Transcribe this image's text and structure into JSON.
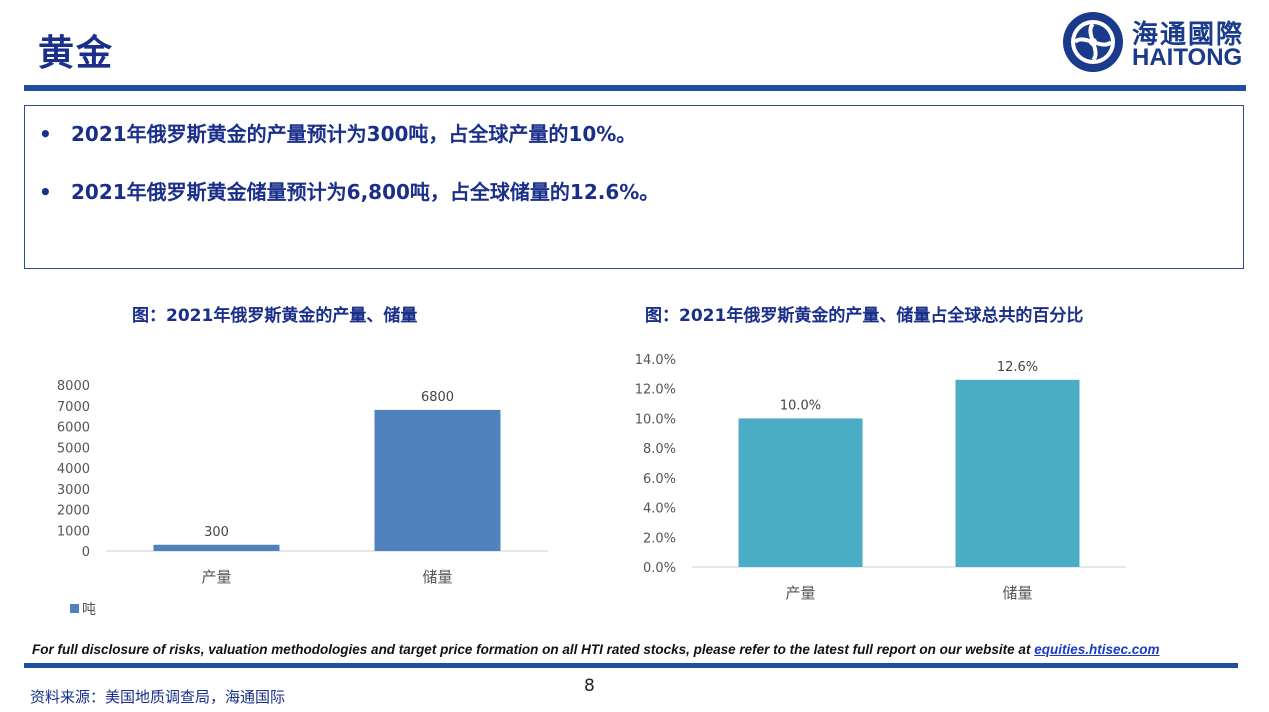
{
  "header": {
    "title": "黄金",
    "logo_cn": "海通國際",
    "logo_en": "HAITONG"
  },
  "bullets": [
    "2021年俄罗斯黄金的产量预计为300吨，占全球产量的10%。",
    "2021年俄罗斯黄金储量预计为6,800吨，占全球储量的12.6%。"
  ],
  "bullet_marker": "•",
  "colors": {
    "primary": "#1a2f8a",
    "rule": "#1e4fa0",
    "bar_left": "#4f81bd",
    "bar_right": "#4bacc6"
  },
  "chart_data": [
    {
      "type": "bar",
      "title": "图：2021年俄罗斯黄金的产量、储量",
      "categories": [
        "产量",
        "储量"
      ],
      "series": [
        {
          "name": "吨",
          "values": [
            300,
            6800
          ]
        }
      ],
      "data_labels": [
        "300",
        "6800"
      ],
      "ylim": [
        0,
        8000
      ],
      "yticks": [
        "0",
        "1000",
        "2000",
        "3000",
        "4000",
        "5000",
        "6000",
        "7000",
        "8000"
      ],
      "grid": false,
      "legend": "bottom-left"
    },
    {
      "type": "bar",
      "title": "图：2021年俄罗斯黄金的产量、储量占全球总共的百分比",
      "categories": [
        "产量",
        "储量"
      ],
      "series": [
        {
          "values": [
            10.0,
            12.6
          ]
        }
      ],
      "data_labels": [
        "10.0%",
        "12.6%"
      ],
      "ylim": [
        0,
        14
      ],
      "yticks": [
        "0.0%",
        "2.0%",
        "4.0%",
        "6.0%",
        "8.0%",
        "10.0%",
        "12.0%",
        "14.0%"
      ],
      "grid": false,
      "legend": "none"
    }
  ],
  "footer": {
    "disclaimer": "For full disclosure of risks, valuation methodologies and target price formation on all HTI rated stocks, please refer to the latest full report on our website at",
    "link": "equities.htisec.com",
    "page_number": "8",
    "source": "资料来源：美国地质调查局，海通国际"
  }
}
